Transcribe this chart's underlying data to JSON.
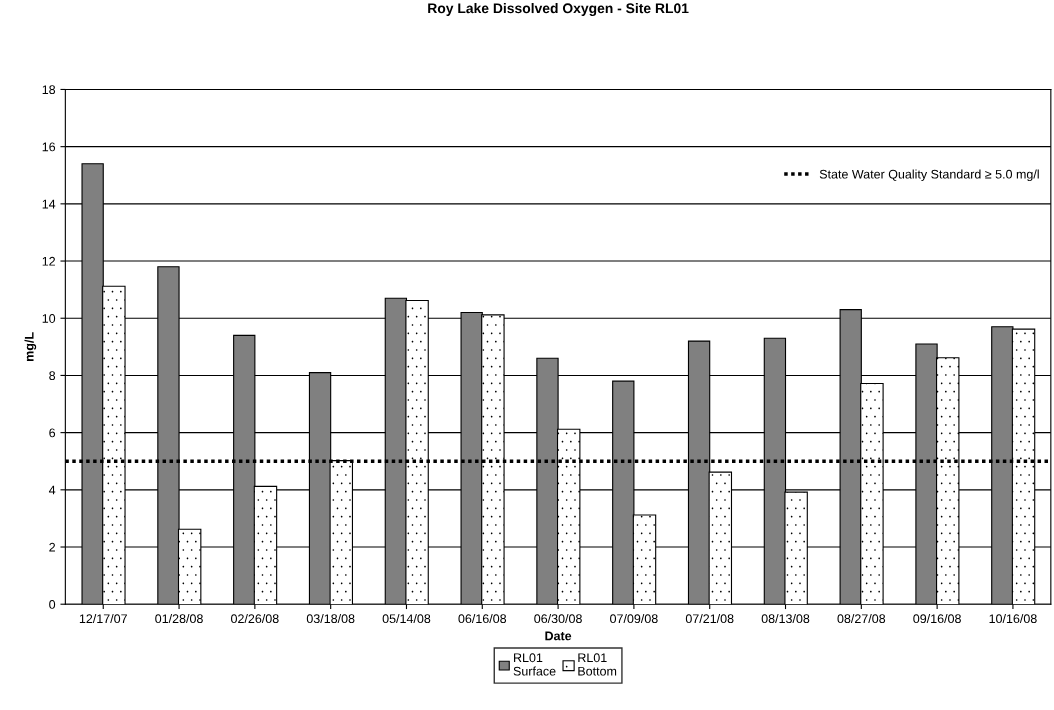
{
  "chart_data": {
    "type": "bar",
    "title": "Roy Lake Dissolved Oxygen - Site RL01",
    "xlabel": "Date",
    "ylabel": "mg/L",
    "categories": [
      "12/17/07",
      "01/28/08",
      "02/26/08",
      "03/18/08",
      "05/14/08",
      "06/16/08",
      "06/30/08",
      "07/09/08",
      "07/21/08",
      "08/13/08",
      "08/27/08",
      "09/16/08",
      "10/16/08"
    ],
    "series": [
      {
        "name": "RL01\nSurface",
        "color": "#808080",
        "values": [
          15.4,
          11.8,
          9.4,
          8.1,
          10.7,
          10.2,
          8.6,
          7.8,
          9.2,
          9.3,
          10.3,
          9.1,
          9.7
        ]
      },
      {
        "name": "RL01\nBottom",
        "color": "#ffffff",
        "values": [
          11.1,
          2.6,
          4.1,
          5.0,
          10.6,
          10.1,
          6.1,
          3.1,
          4.6,
          3.9,
          7.7,
          8.6,
          9.6
        ]
      }
    ],
    "ylim": [
      0,
      18
    ],
    "yticks": [
      0,
      2,
      4,
      6,
      8,
      10,
      12,
      14,
      16,
      18
    ],
    "grid": "y",
    "legend": "bottom",
    "ref_lines": [
      {
        "axis": "y",
        "value": 5.0,
        "label": "State Water Quality Standard ≥ 5.0 mg/l",
        "color": "#000000",
        "line_style": "dotted"
      }
    ]
  }
}
